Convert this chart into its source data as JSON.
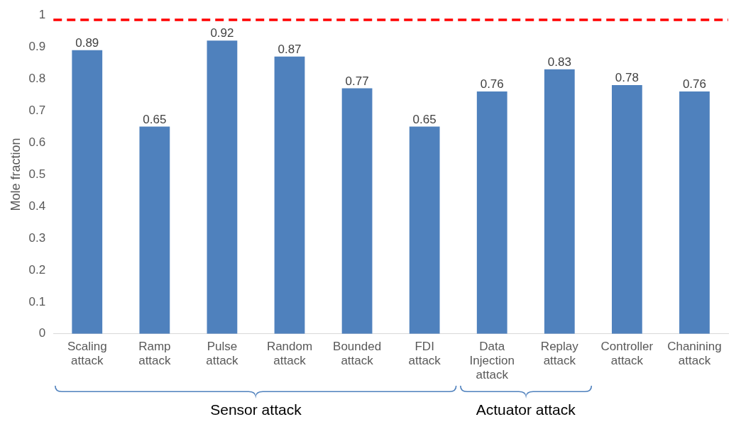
{
  "chart_data": {
    "type": "bar",
    "ylabel": "Mole fraction",
    "categories": [
      "Scaling attack",
      "Ramp attack",
      "Pulse attack",
      "Random attack",
      "Bounded attack",
      "FDI attack",
      "Data Injection attack",
      "Replay attack",
      "Controller attack",
      "Chanining attack"
    ],
    "values": [
      0.89,
      0.65,
      0.92,
      0.87,
      0.77,
      0.65,
      0.76,
      0.83,
      0.78,
      0.76
    ],
    "color": "#4f81bd",
    "data_labels": true,
    "ylim": [
      0,
      1
    ],
    "yticks": [
      0,
      0.1,
      0.2,
      0.3,
      0.4,
      0.5,
      0.6,
      0.7,
      0.8,
      0.9,
      1
    ],
    "grid": false,
    "ref_lines": [
      {
        "axis": "y",
        "value": 0.985,
        "color": "#ff0000",
        "line_style": "dashed"
      }
    ],
    "annotations": [
      "Sensor attack",
      "Actuator attack"
    ]
  }
}
